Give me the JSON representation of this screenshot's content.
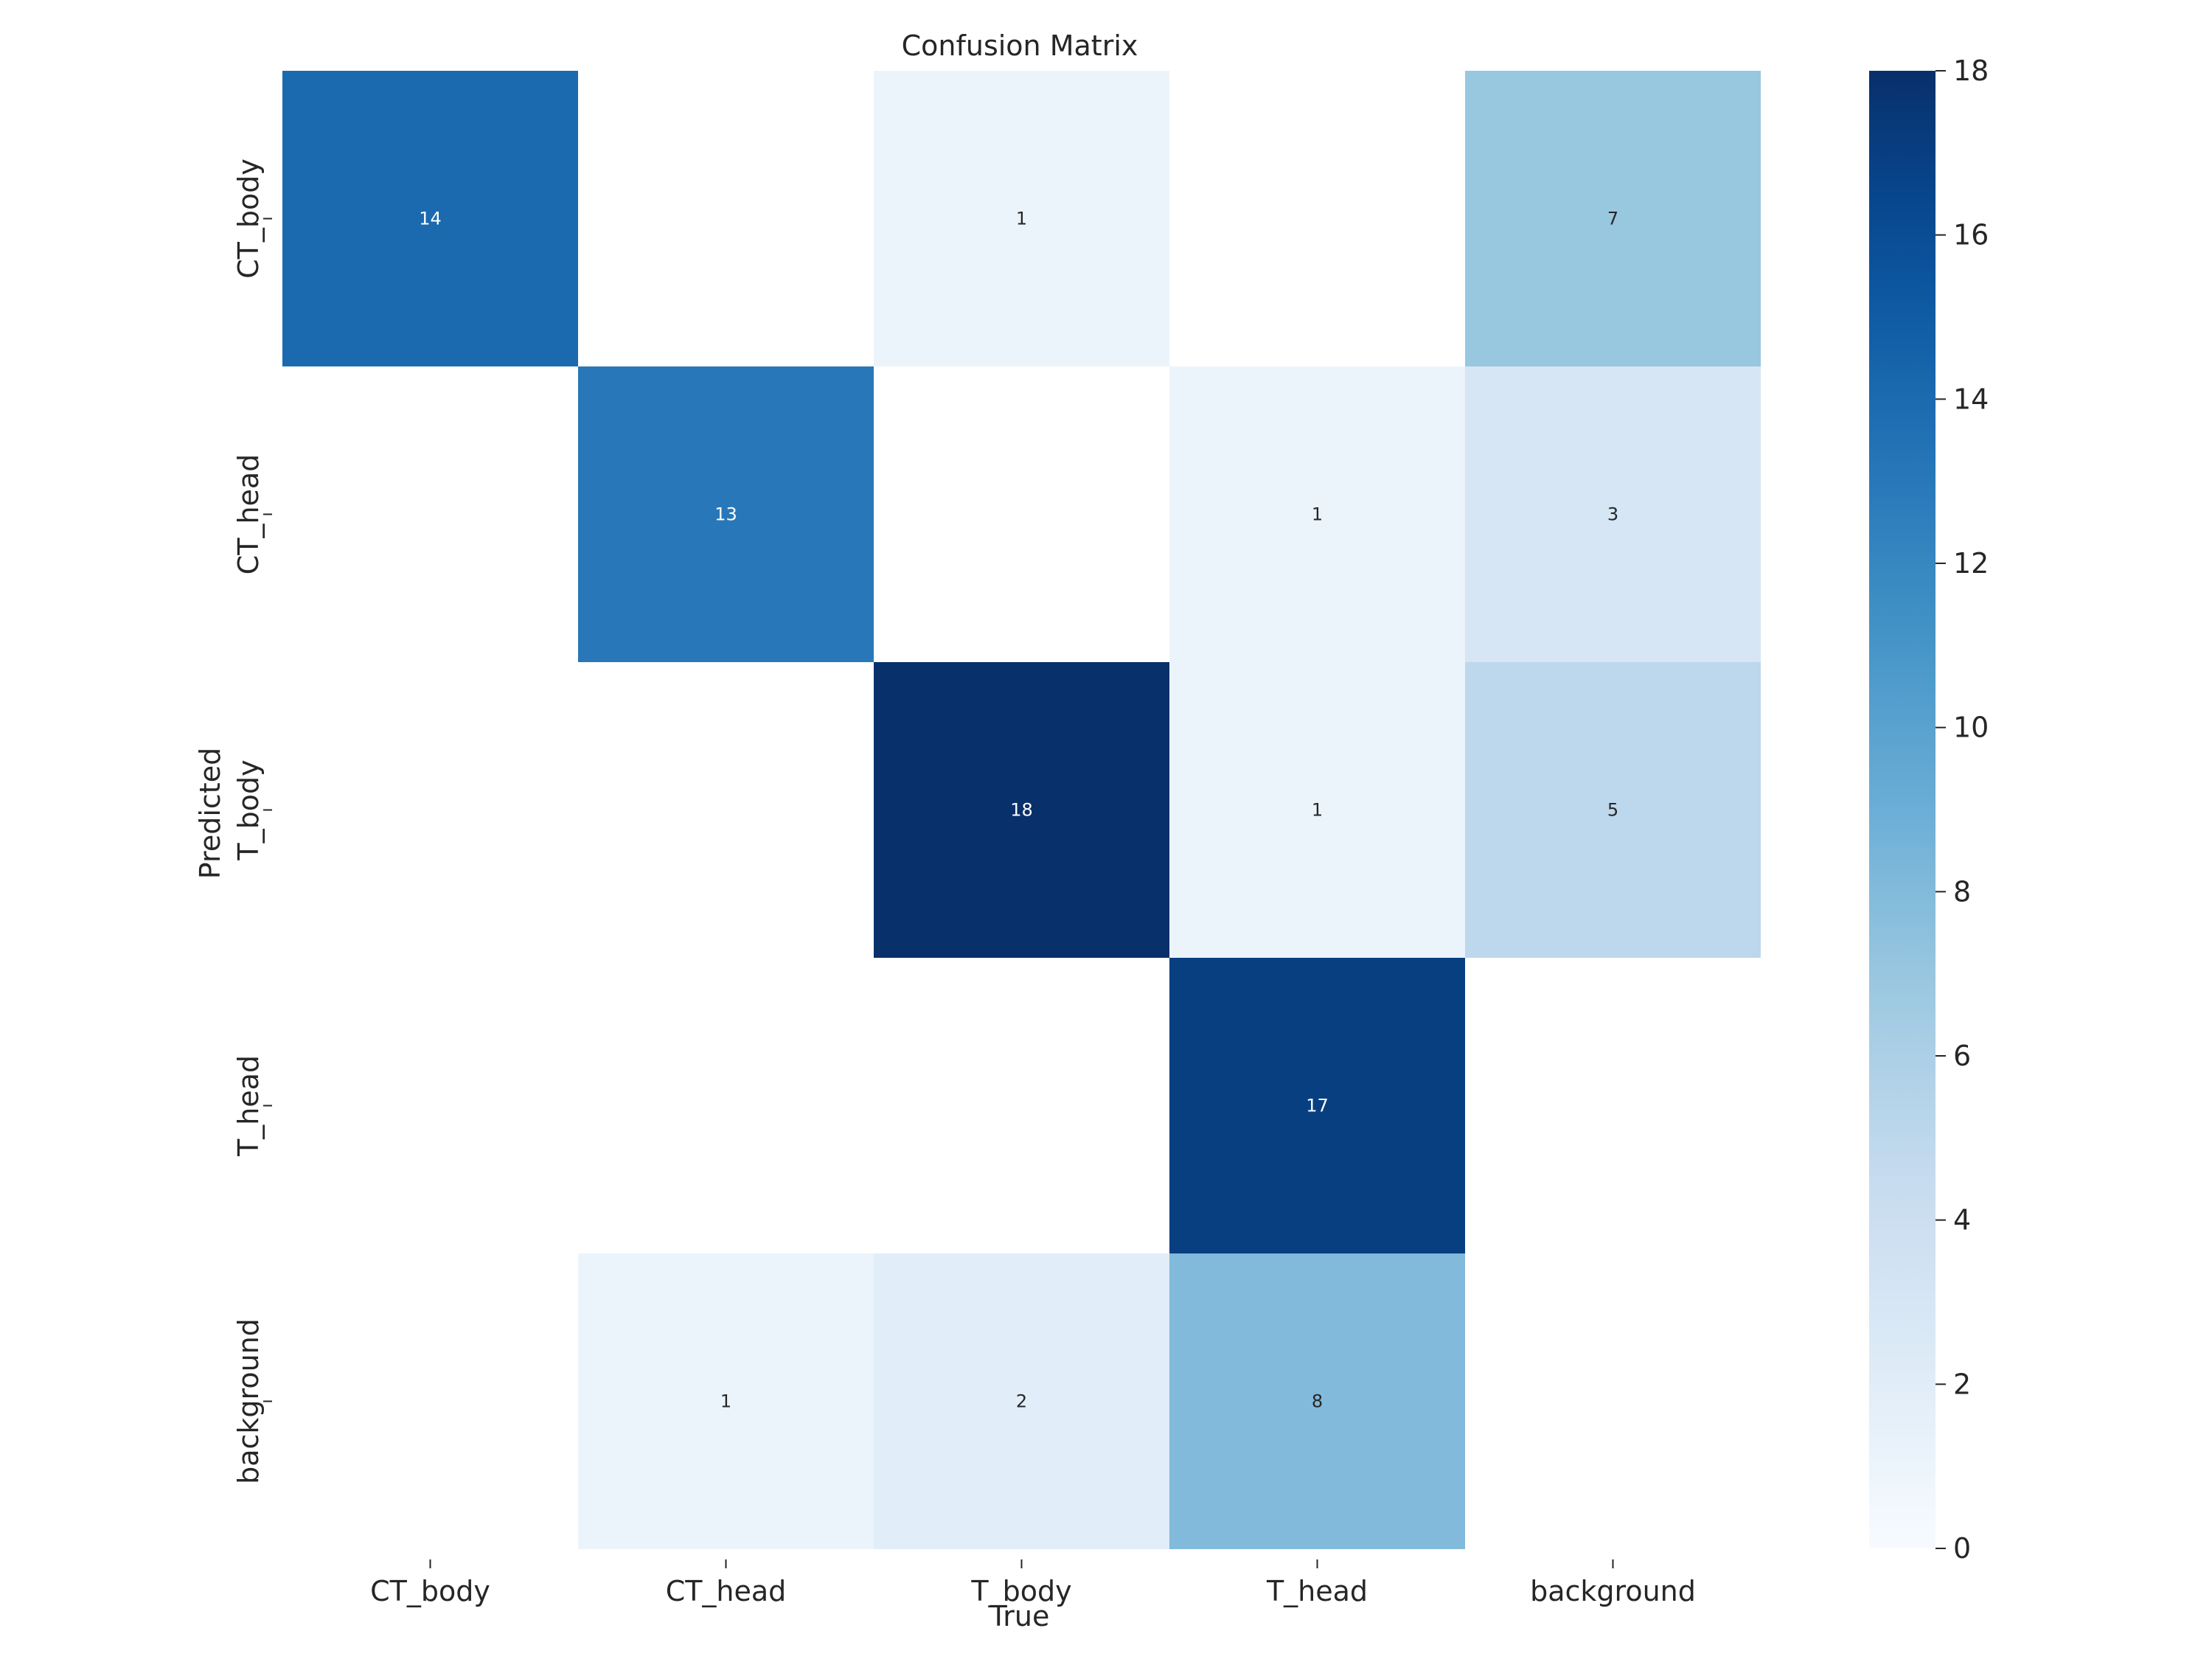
{
  "chart_data": {
    "type": "heatmap",
    "title": "Confusion Matrix",
    "xlabel": "True",
    "ylabel": "Predicted",
    "x_categories": [
      "CT_body",
      "CT_head",
      "T_body",
      "T_head",
      "background"
    ],
    "y_categories": [
      "CT_body",
      "CT_head",
      "T_body",
      "T_head",
      "background"
    ],
    "values": [
      [
        14,
        null,
        1,
        null,
        7
      ],
      [
        null,
        13,
        null,
        1,
        3
      ],
      [
        null,
        null,
        18,
        1,
        5
      ],
      [
        null,
        null,
        null,
        17,
        null
      ],
      [
        null,
        1,
        2,
        8,
        null
      ]
    ],
    "colorbar": {
      "range": [
        0,
        18
      ],
      "ticks": [
        0,
        2,
        4,
        6,
        8,
        10,
        12,
        14,
        16,
        18
      ],
      "colormap": "Blues",
      "color_low": "#f7fbff",
      "color_high": "#08306b"
    }
  }
}
